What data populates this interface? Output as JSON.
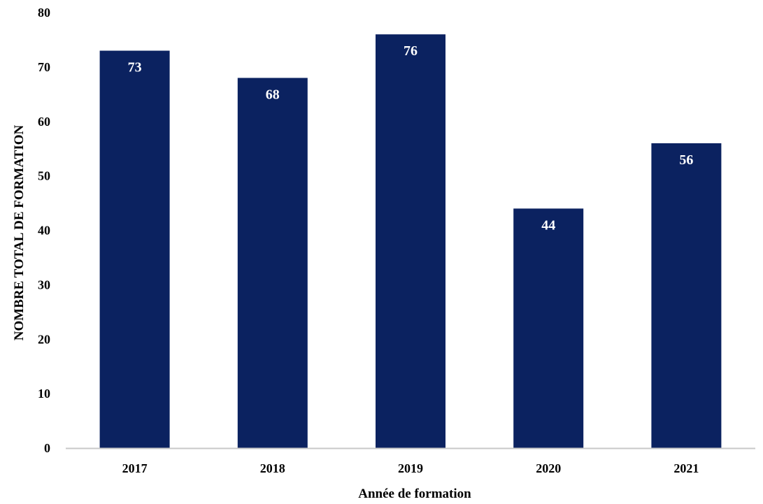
{
  "chart_data": {
    "type": "bar",
    "categories": [
      "2017",
      "2018",
      "2019",
      "2020",
      "2021"
    ],
    "values": [
      73,
      68,
      76,
      44,
      56
    ],
    "title": "",
    "xlabel": "Année de formation",
    "ylabel": "NOMBRE TOTAL DE FORMATION",
    "ylim": [
      0,
      80
    ],
    "yticks": [
      0,
      10,
      20,
      30,
      40,
      50,
      60,
      70,
      80
    ],
    "data_labels": [
      "73",
      "68",
      "76",
      "44",
      "56"
    ],
    "grid": false,
    "legend": "none",
    "bar_color": "#0b2260",
    "axis_color": "#c8c8c8"
  }
}
